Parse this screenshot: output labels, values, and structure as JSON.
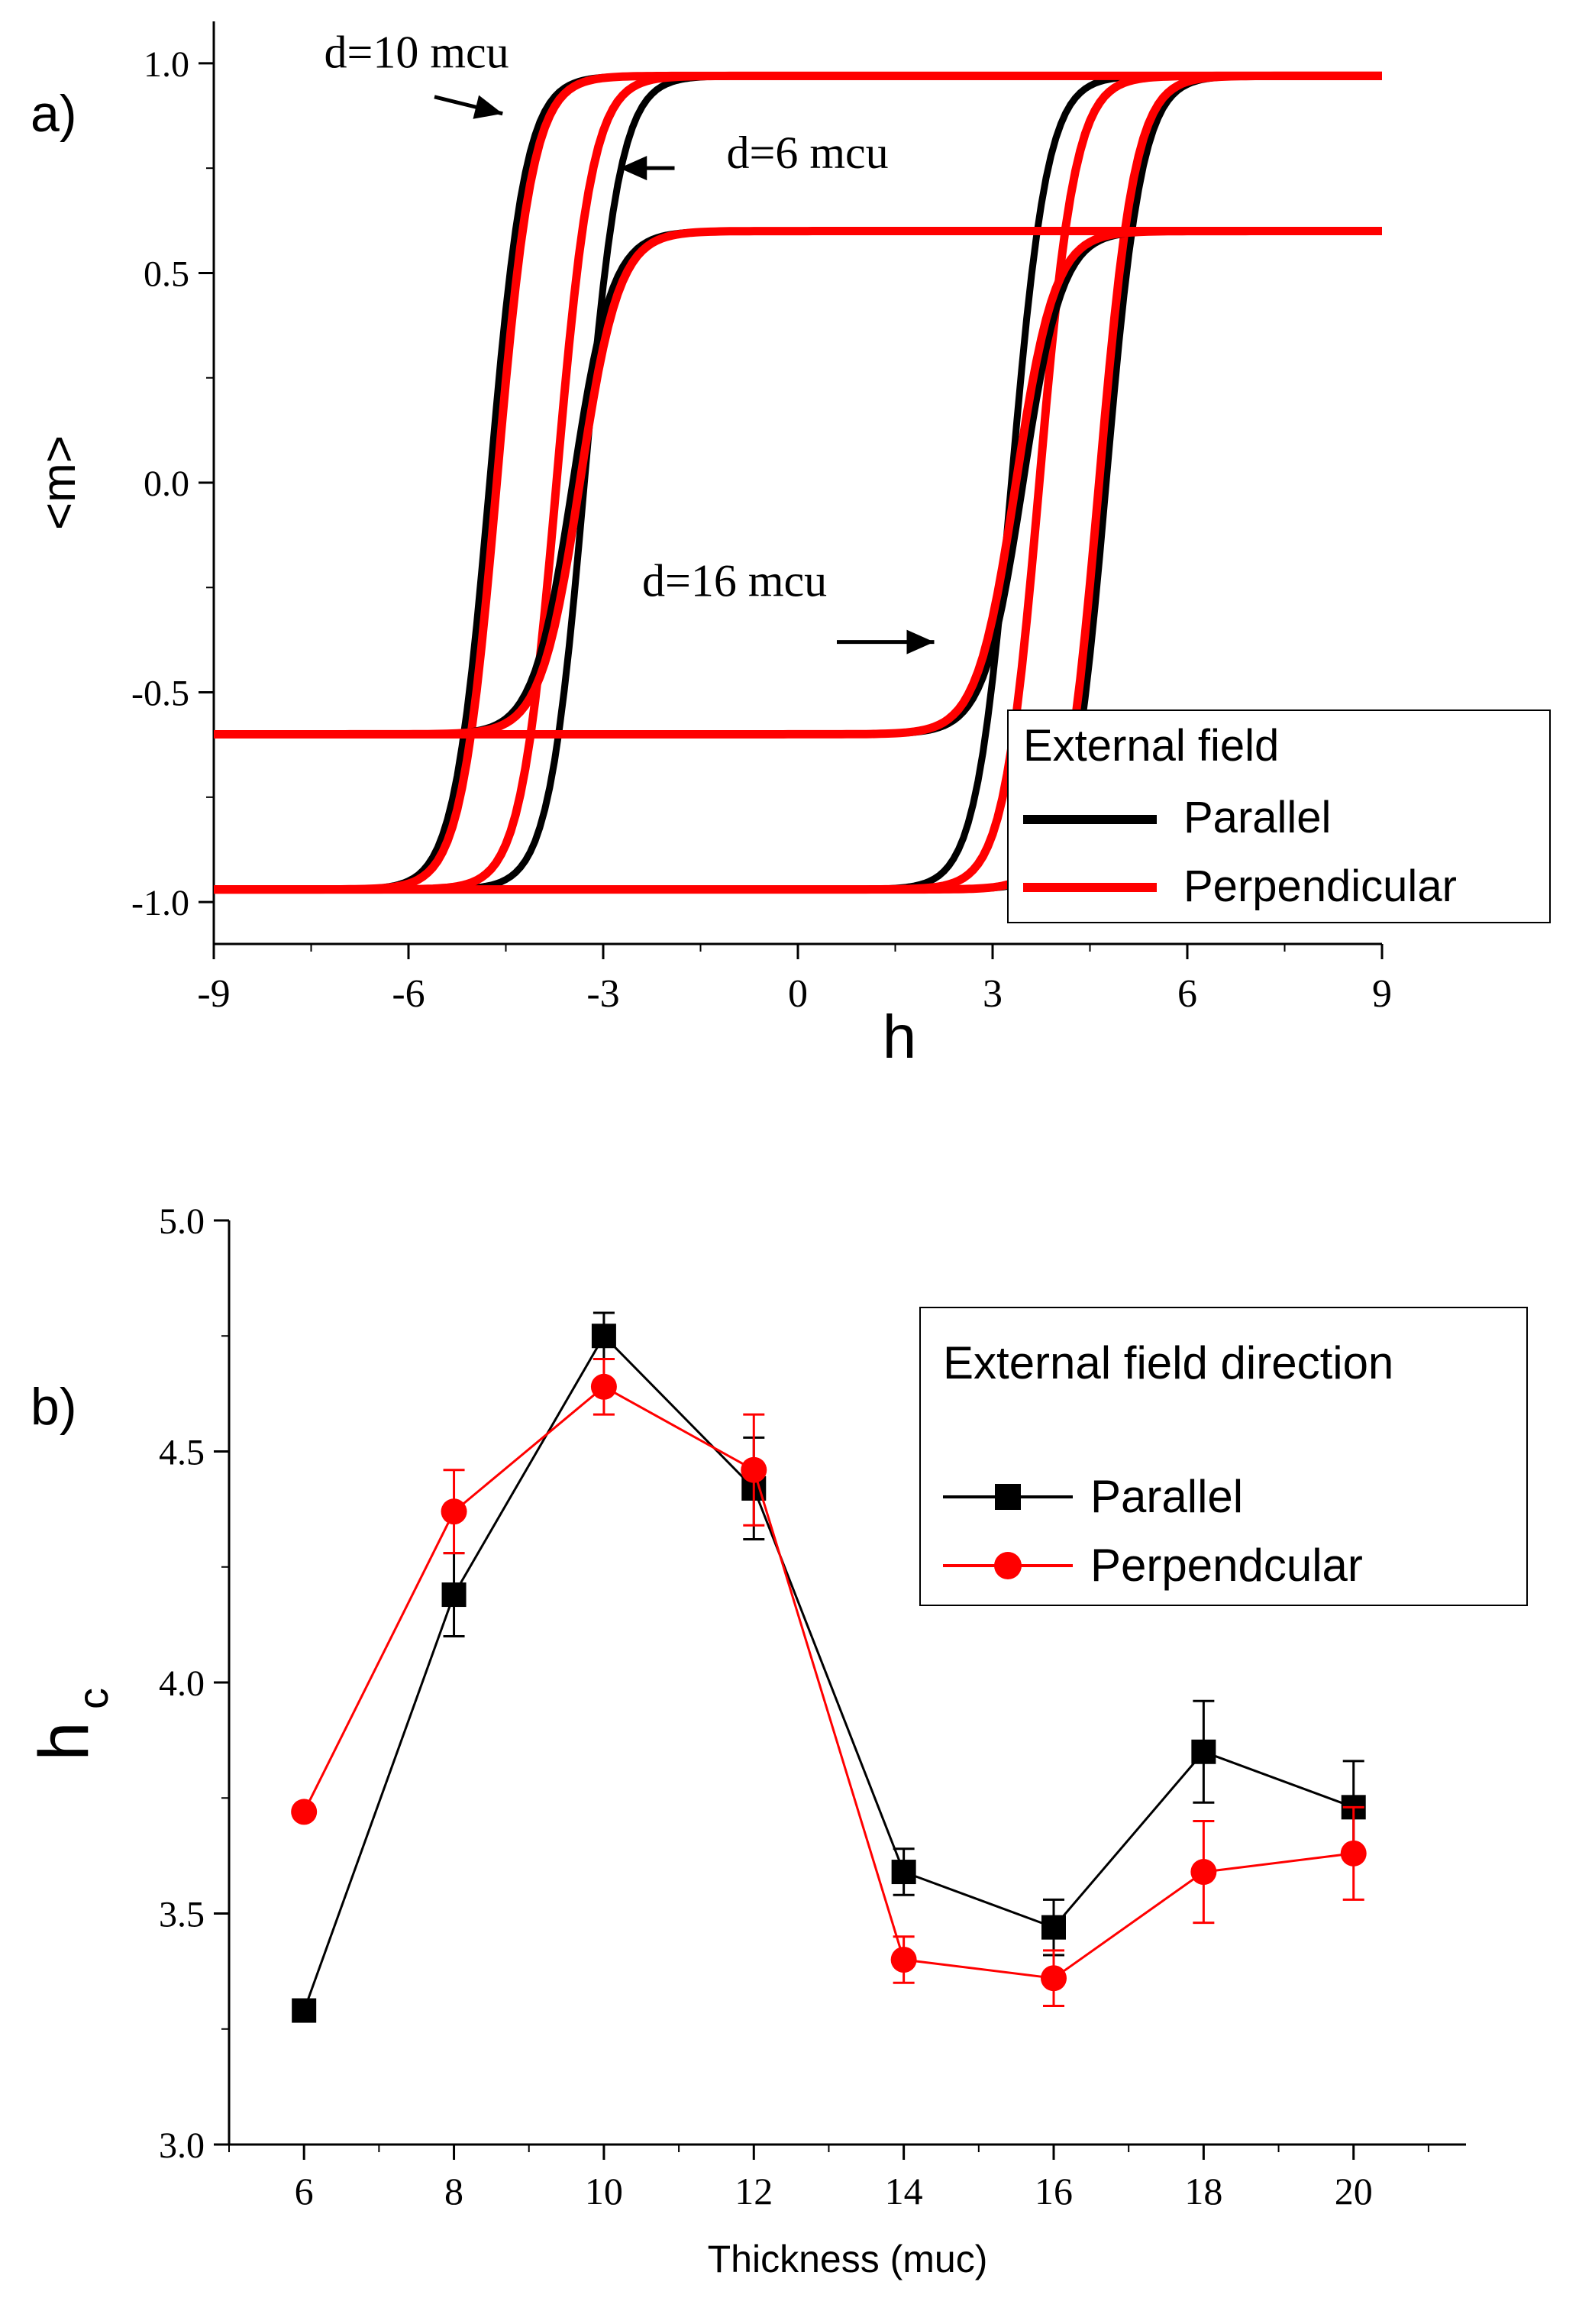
{
  "chart_data": [
    {
      "panel_label": "a)",
      "type": "line",
      "xlabel": "h",
      "ylabel": "<m>",
      "xlim": [
        -9,
        9
      ],
      "ylim": [
        -1.1,
        1.1
      ],
      "xticks": [
        -9,
        -6,
        -3,
        0,
        3,
        6,
        9
      ],
      "xtick_labels": [
        "-9",
        "-6",
        "-3",
        "0",
        "3",
        "6",
        "9"
      ],
      "yticks": [
        -1.0,
        -0.5,
        0.0,
        0.5,
        1.0
      ],
      "ytick_labels": [
        "-1.0",
        "-0.5",
        "0.0",
        "0.5",
        "1.0"
      ],
      "grid": false,
      "legend": {
        "title": "External field",
        "position": "bottom-right",
        "entries": [
          {
            "label": "Parallel",
            "color": "#000000"
          },
          {
            "label": "Perpendicular",
            "color": "#ff0000"
          }
        ]
      },
      "loops": [
        {
          "name": "d=10 mcu",
          "ms": 0.97,
          "hc": {
            "Parallel": 4.75,
            "Perpendicular": 4.64
          },
          "width": 0.55
        },
        {
          "name": "d=6 mcu",
          "ms": 0.97,
          "hc": {
            "Parallel": 3.29,
            "Perpendicular": 3.72
          },
          "width": 0.55
        },
        {
          "name": "d=16 mcu",
          "ms": 0.6,
          "hc": {
            "Parallel": 3.47,
            "Perpendicular": 3.36
          },
          "width": 0.6
        }
      ],
      "annotations": [
        {
          "text": "d=10 mcu",
          "target_loop": "d=10 mcu"
        },
        {
          "text": "d=6 mcu",
          "target_loop": "d=6 mcu"
        },
        {
          "text": "d=16 mcu",
          "target_loop": "d=16 mcu"
        }
      ]
    },
    {
      "panel_label": "b)",
      "type": "line",
      "xlabel": "Thickness (muc)",
      "ylabel_main": "h",
      "ylabel_sub": "c",
      "xlim": [
        5,
        21.5
      ],
      "ylim": [
        3.0,
        5.0
      ],
      "xticks": [
        6,
        8,
        10,
        12,
        14,
        16,
        18,
        20
      ],
      "xtick_labels": [
        "6",
        "8",
        "10",
        "12",
        "14",
        "16",
        "18",
        "20"
      ],
      "yticks": [
        3.0,
        3.5,
        4.0,
        4.5,
        5.0
      ],
      "ytick_labels": [
        "3.0",
        "3.5",
        "4.0",
        "4.5",
        "5.0"
      ],
      "grid": false,
      "legend": {
        "title": "External field direction",
        "position": "top-right",
        "entries": [
          {
            "label": "Parallel",
            "color": "#000000",
            "marker": "square"
          },
          {
            "label": "Perpendcular",
            "color": "#ff0000",
            "marker": "circle"
          }
        ]
      },
      "x": [
        6,
        8,
        10,
        12,
        14,
        16,
        18,
        20
      ],
      "series": [
        {
          "name": "Parallel",
          "color": "#000000",
          "marker": "square",
          "values": [
            3.29,
            4.19,
            4.75,
            4.42,
            3.59,
            3.47,
            3.85,
            3.73
          ],
          "errors": [
            0,
            0.09,
            0.05,
            0.11,
            0.05,
            0.06,
            0.11,
            0.1
          ]
        },
        {
          "name": "Perpendcular",
          "color": "#ff0000",
          "marker": "circle",
          "values": [
            3.72,
            4.37,
            4.64,
            4.46,
            3.4,
            3.36,
            3.59,
            3.63
          ],
          "errors": [
            0,
            0.09,
            0.06,
            0.12,
            0.05,
            0.06,
            0.11,
            0.1
          ]
        }
      ]
    }
  ]
}
